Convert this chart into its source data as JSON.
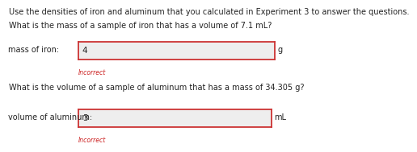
{
  "title_text": "Use the densities of iron and aluminum that you calculated in Experiment 3 to answer the questions.",
  "q1_text": "What is the mass of a sample of iron that has a volume of 7.1 mL?",
  "q1_label": "mass of iron:",
  "q1_value": "4",
  "q1_unit": "g",
  "q1_status": "Incorrect",
  "q2_text": "What is the volume of a sample of aluminum that has a mass of 34.305 g?",
  "q2_label": "volume of aluminum:",
  "q2_value": "3",
  "q2_unit": "mL",
  "q2_status": "Incorrect",
  "bg_color": "#ffffff",
  "box_bg": "#eeeeee",
  "box_border": "#cc3333",
  "text_color": "#222222",
  "incorrect_color": "#cc2222",
  "fontsize": 7.0,
  "value_fontsize": 7.5,
  "incorrect_fontsize": 5.5
}
